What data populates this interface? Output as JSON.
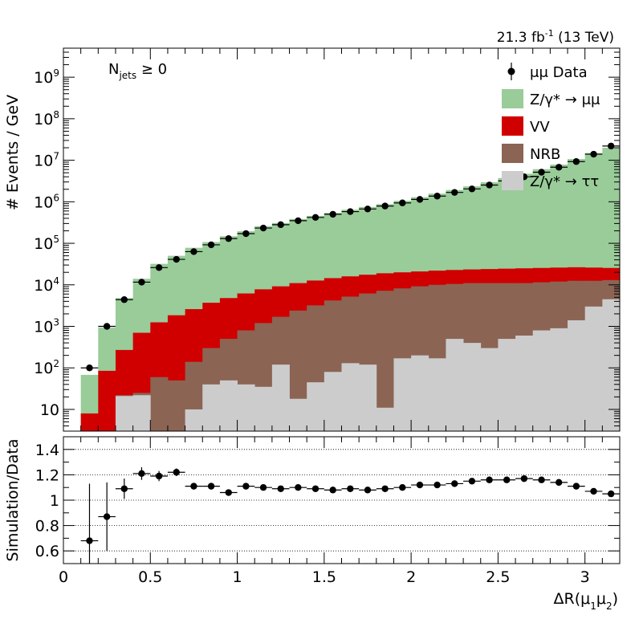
{
  "header": {
    "lumi_text": "21.3 fb",
    "lumi_exp": "-1",
    "energy": " (13 TeV)"
  },
  "category": {
    "main": "N",
    "sub": "jets",
    "rest": " ≥ 0"
  },
  "chart_data": [
    {
      "type": "bar",
      "stacked": true,
      "y_scale": "log",
      "ylabel": "# Events / GeV",
      "xlim": [
        0,
        3.2
      ],
      "ylim": [
        3,
        5000000000.0
      ],
      "y_tick_labels": [
        {
          "value": 10,
          "base": "10",
          "exp": ""
        },
        {
          "value": 100,
          "base": "10",
          "exp": "2"
        },
        {
          "value": 1000,
          "base": "10",
          "exp": "3"
        },
        {
          "value": 10000,
          "base": "10",
          "exp": "4"
        },
        {
          "value": 100000,
          "base": "10",
          "exp": "5"
        },
        {
          "value": 1000000,
          "base": "10",
          "exp": "6"
        },
        {
          "value": 10000000,
          "base": "10",
          "exp": "7"
        },
        {
          "value": 100000000,
          "base": "10",
          "exp": "8"
        },
        {
          "value": 1000000000,
          "base": "10",
          "exp": "9"
        }
      ],
      "bin_edges": [
        0.1,
        0.2,
        0.3,
        0.4,
        0.5,
        0.6,
        0.7,
        0.8,
        0.9,
        1.0,
        1.1,
        1.2,
        1.3,
        1.4,
        1.5,
        1.6,
        1.7,
        1.8,
        1.9,
        2.0,
        2.1,
        2.2,
        2.3,
        2.4,
        2.5,
        2.6,
        2.7,
        2.8,
        2.9,
        3.0,
        3.1,
        3.2
      ],
      "series": [
        {
          "name": "Z/γ* → ττ",
          "color": "#cccccc",
          "cumulative": [
            0,
            0,
            21,
            22,
            2,
            2,
            10,
            40,
            50,
            40,
            35,
            120,
            18,
            45,
            80,
            130,
            120,
            11,
            170,
            200,
            170,
            500,
            400,
            300,
            500,
            600,
            800,
            900,
            1400,
            3000,
            4500
          ]
        },
        {
          "name": "NRB",
          "color": "#8b6454",
          "cumulative": [
            0,
            0,
            22,
            25,
            60,
            50,
            140,
            300,
            500,
            800,
            1200,
            1700,
            2400,
            3200,
            4200,
            5200,
            6200,
            7200,
            8200,
            9200,
            10000,
            10500,
            11000,
            11000,
            11000,
            11000,
            11500,
            12000,
            12500,
            12500,
            13000
          ]
        },
        {
          "name": "VV",
          "color": "#d00000",
          "cumulative": [
            8,
            85,
            270,
            700,
            1250,
            1850,
            2600,
            3700,
            4800,
            6200,
            7800,
            9200,
            11000,
            12700,
            14500,
            16000,
            17500,
            19000,
            20000,
            21000,
            22000,
            22800,
            23500,
            24000,
            24500,
            25000,
            25500,
            26000,
            26500,
            26000,
            25500
          ]
        },
        {
          "name": "Z/γ* → μμ",
          "color": "#99cc99",
          "cumulative": [
            68,
            930,
            4800,
            14000,
            32000,
            50000,
            78000,
            107000,
            148000,
            195000,
            258000,
            308000,
            385000,
            458000,
            540000,
            643000,
            750000,
            880000,
            1060000,
            1290000,
            1570000,
            1920000,
            2350000,
            2950000,
            3720000,
            4750000,
            6100000,
            7850000,
            10700000,
            15000000,
            20000000
          ]
        }
      ],
      "data": {
        "name": "μμ Data",
        "x": [
          0.15,
          0.25,
          0.35,
          0.45,
          0.55,
          0.65,
          0.75,
          0.85,
          0.95,
          1.05,
          1.15,
          1.25,
          1.35,
          1.45,
          1.55,
          1.65,
          1.75,
          1.85,
          1.95,
          2.05,
          2.15,
          2.25,
          2.35,
          2.45,
          2.55,
          2.65,
          2.75,
          2.85,
          2.95,
          3.05,
          3.15
        ],
        "y": [
          100,
          1000,
          4400,
          11600,
          26000,
          41000,
          63000,
          92000,
          130000,
          171000,
          233000,
          281000,
          350000,
          420000,
          500000,
          580000,
          670000,
          790000,
          940000,
          1140000,
          1370000,
          1680000,
          2040000,
          2530000,
          3170000,
          4000000,
          5150000,
          6800000,
          9300000,
          14000000,
          22000000
        ]
      }
    },
    {
      "type": "scatter",
      "ylabel": "Simulation/Data",
      "xlabel": "ΔR(μ₁μ₂)",
      "xlim": [
        0,
        3.2
      ],
      "ylim": [
        0.5,
        1.5
      ],
      "y_ticks": [
        0.6,
        0.8,
        1,
        1.2,
        1.4
      ],
      "y_tick_labels": [
        "0.6",
        "0.8",
        "1",
        "1.2",
        "1.4"
      ],
      "x_ticks": [
        0,
        0.5,
        1,
        1.5,
        2,
        2.5,
        3
      ],
      "x_tick_labels": [
        "0",
        "0.5",
        "1",
        "1.5",
        "2",
        "2.5",
        "3"
      ],
      "grid_y": [
        0.6,
        0.8,
        1,
        1.2,
        1.4
      ],
      "x": [
        0.15,
        0.25,
        0.35,
        0.45,
        0.55,
        0.65,
        0.75,
        0.85,
        0.95,
        1.05,
        1.15,
        1.25,
        1.35,
        1.45,
        1.55,
        1.65,
        1.75,
        1.85,
        1.95,
        2.05,
        2.15,
        2.25,
        2.35,
        2.45,
        2.55,
        2.65,
        2.75,
        2.85,
        2.95,
        3.05,
        3.15
      ],
      "y": [
        0.68,
        0.87,
        1.09,
        1.21,
        1.19,
        1.22,
        1.11,
        1.11,
        1.06,
        1.11,
        1.1,
        1.09,
        1.1,
        1.09,
        1.08,
        1.09,
        1.08,
        1.09,
        1.1,
        1.12,
        1.12,
        1.13,
        1.15,
        1.16,
        1.16,
        1.17,
        1.16,
        1.14,
        1.11,
        1.07,
        1.05
      ],
      "y_err": [
        0.45,
        0.27,
        0.08,
        0.05,
        0.04,
        0.03,
        0.02,
        0.02,
        0.02,
        0.02,
        0.01,
        0.01,
        0.01,
        0.01,
        0.01,
        0.01,
        0.01,
        0.01,
        0.01,
        0.01,
        0.01,
        0.01,
        0.01,
        0.01,
        0.01,
        0.01,
        0.01,
        0.01,
        0.01,
        0.01,
        0.01
      ]
    }
  ]
}
